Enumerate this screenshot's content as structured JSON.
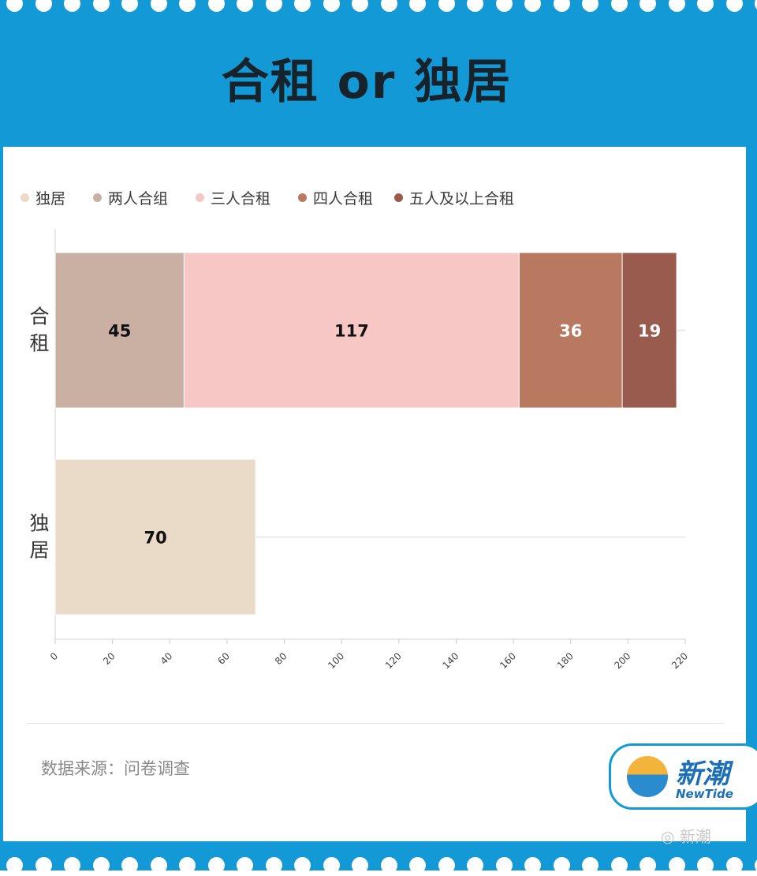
{
  "title": "合租 or 独居",
  "legend": [
    {
      "label": "独居",
      "color": "#eadbc8"
    },
    {
      "label": "两人合组",
      "color": "#c9b0a3"
    },
    {
      "label": "三人合租",
      "color": "#f7c7c5"
    },
    {
      "label": "四人合租",
      "color": "#b97860"
    },
    {
      "label": "五人及以上合租",
      "color": "#985b4e"
    }
  ],
  "chart_data": {
    "type": "bar",
    "orientation": "horizontal",
    "stacked": true,
    "categories": [
      "合租",
      "独居"
    ],
    "series": [
      {
        "name": "独居",
        "color": "#eadbc8",
        "values": [
          0,
          70
        ]
      },
      {
        "name": "两人合组",
        "color": "#c9b0a3",
        "values": [
          45,
          0
        ]
      },
      {
        "name": "三人合租",
        "color": "#f7c7c5",
        "values": [
          117,
          0
        ]
      },
      {
        "name": "四人合租",
        "color": "#b97860",
        "values": [
          36,
          0
        ]
      },
      {
        "name": "五人及以上合租",
        "color": "#985b4e",
        "values": [
          19,
          0
        ]
      }
    ],
    "xlim": [
      0,
      220
    ],
    "xticks": [
      0,
      20,
      40,
      60,
      80,
      100,
      120,
      140,
      160,
      180,
      200,
      220
    ],
    "legend_position": "top-left",
    "grid": true
  },
  "source": "数据来源：问卷调查",
  "logo": {
    "cn": "新潮",
    "en": "NewTide"
  },
  "watermark": "新潮"
}
